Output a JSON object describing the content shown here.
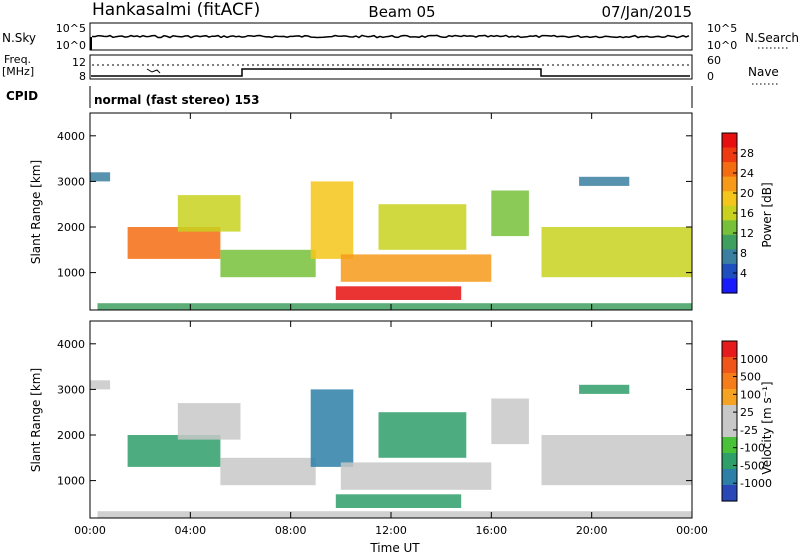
{
  "header": {
    "station": "Hankasalmi (fitACF)",
    "beam": "Beam 05",
    "date": "07/Jan/2015"
  },
  "top_panels": {
    "nsky_label": "N.Sky",
    "nsky_ticks": [
      "10^5",
      "10^0"
    ],
    "nsearch_label": "N.Search",
    "nsearch_ticks": [
      "10^5",
      "10^0"
    ],
    "freq_label": "Freq.",
    "freq_unit": "[MHz]",
    "freq_ticks": [
      "12",
      "8"
    ],
    "nave_label": "Nave",
    "nave_ticks": [
      "60",
      "0"
    ],
    "cpid_label": "CPID",
    "cpid_text": "normal (fast stereo) 153"
  },
  "chart_data": [
    {
      "type": "heatmap",
      "panel": "power",
      "ylabel": "Slant Range [km]",
      "xlabel": "Time UT",
      "ylim": [
        180,
        4500
      ],
      "yticks": [
        "4000",
        "3000",
        "2000",
        "1000"
      ],
      "xticks": [
        "00:00",
        "04:00",
        "08:00",
        "12:00",
        "16:00",
        "20:00",
        "00:00"
      ],
      "colorbar_label": "Power [dB]",
      "colorbar_ticks": [
        "28",
        "24",
        "20",
        "16",
        "12",
        "8",
        "4"
      ],
      "colorbar_colors": [
        "#1a1aff",
        "#1f4fbf",
        "#3a7fa0",
        "#3f9f5f",
        "#77c13a",
        "#c8d21e",
        "#f4c51a",
        "#f79a1a",
        "#f46c12",
        "#ee3a10",
        "#e61010"
      ],
      "regions": [
        {
          "t0": 0.3,
          "t1": 24.0,
          "r0": 190,
          "r1": 330,
          "level": 0.25
        },
        {
          "t0": 1.5,
          "t1": 5.2,
          "r0": 1300,
          "r1": 2000,
          "level": 0.8
        },
        {
          "t0": 3.5,
          "t1": 6.0,
          "r0": 1900,
          "r1": 2700,
          "level": 0.45
        },
        {
          "t0": 5.2,
          "t1": 9.0,
          "r0": 900,
          "r1": 1500,
          "level": 0.35
        },
        {
          "t0": 8.8,
          "t1": 10.5,
          "r0": 1300,
          "r1": 3000,
          "level": 0.55
        },
        {
          "t0": 9.8,
          "t1": 14.8,
          "r0": 400,
          "r1": 700,
          "level": 0.95
        },
        {
          "t0": 10.0,
          "t1": 16.0,
          "r0": 800,
          "r1": 1400,
          "level": 0.7
        },
        {
          "t0": 11.5,
          "t1": 15.0,
          "r0": 1500,
          "r1": 2500,
          "level": 0.45
        },
        {
          "t0": 16.0,
          "t1": 17.5,
          "r0": 1800,
          "r1": 2800,
          "level": 0.4
        },
        {
          "t0": 18.0,
          "t1": 24.0,
          "r0": 900,
          "r1": 2000,
          "level": 0.5
        },
        {
          "t0": 19.5,
          "t1": 21.5,
          "r0": 2900,
          "r1": 3100,
          "level": 0.2
        },
        {
          "t0": 0.0,
          "t1": 0.8,
          "r0": 3000,
          "r1": 3200,
          "level": 0.15
        }
      ]
    },
    {
      "type": "heatmap",
      "panel": "velocity",
      "ylabel": "Slant Range [km]",
      "xlabel": "Time UT",
      "ylim": [
        180,
        4500
      ],
      "yticks": [
        "4000",
        "3000",
        "2000",
        "1000"
      ],
      "xticks": [
        "00:00",
        "04:00",
        "08:00",
        "12:00",
        "16:00",
        "20:00",
        "00:00"
      ],
      "colorbar_label": "Velocity [m s⁻¹]",
      "colorbar_ticks": [
        "1000",
        "500",
        "100",
        "25",
        "-25",
        "-100",
        "-500",
        "-1000"
      ],
      "colorbar_colors": [
        "#2a47b8",
        "#2d7fa8",
        "#2f9f6a",
        "#49c23a",
        "#c8c8c8",
        "#c8c8c8",
        "#f6a223",
        "#f47d1a",
        "#f0561a",
        "#e61c1c"
      ],
      "regions": [
        {
          "t0": 0.3,
          "t1": 24.0,
          "r0": 190,
          "r1": 330,
          "v": 0.55
        },
        {
          "t0": 1.5,
          "t1": 5.2,
          "r0": 1300,
          "r1": 2000,
          "v": 0.25
        },
        {
          "t0": 3.5,
          "t1": 6.0,
          "r0": 1900,
          "r1": 2700,
          "v": 0.5
        },
        {
          "t0": 5.2,
          "t1": 9.0,
          "r0": 900,
          "r1": 1500,
          "v": 0.5
        },
        {
          "t0": 8.8,
          "t1": 10.5,
          "r0": 1300,
          "r1": 3000,
          "v": 0.1
        },
        {
          "t0": 9.8,
          "t1": 14.8,
          "r0": 400,
          "r1": 700,
          "v": 0.2
        },
        {
          "t0": 10.0,
          "t1": 16.0,
          "r0": 800,
          "r1": 1400,
          "v": 0.5
        },
        {
          "t0": 11.5,
          "t1": 15.0,
          "r0": 1500,
          "r1": 2500,
          "v": 0.25
        },
        {
          "t0": 16.0,
          "t1": 17.5,
          "r0": 1800,
          "r1": 2800,
          "v": 0.6
        },
        {
          "t0": 18.0,
          "t1": 24.0,
          "r0": 900,
          "r1": 2000,
          "v": 0.5
        },
        {
          "t0": 19.5,
          "t1": 21.5,
          "r0": 2900,
          "r1": 3100,
          "v": 0.25
        },
        {
          "t0": 0.0,
          "t1": 0.8,
          "r0": 3000,
          "r1": 3200,
          "v": 0.5
        }
      ]
    }
  ]
}
